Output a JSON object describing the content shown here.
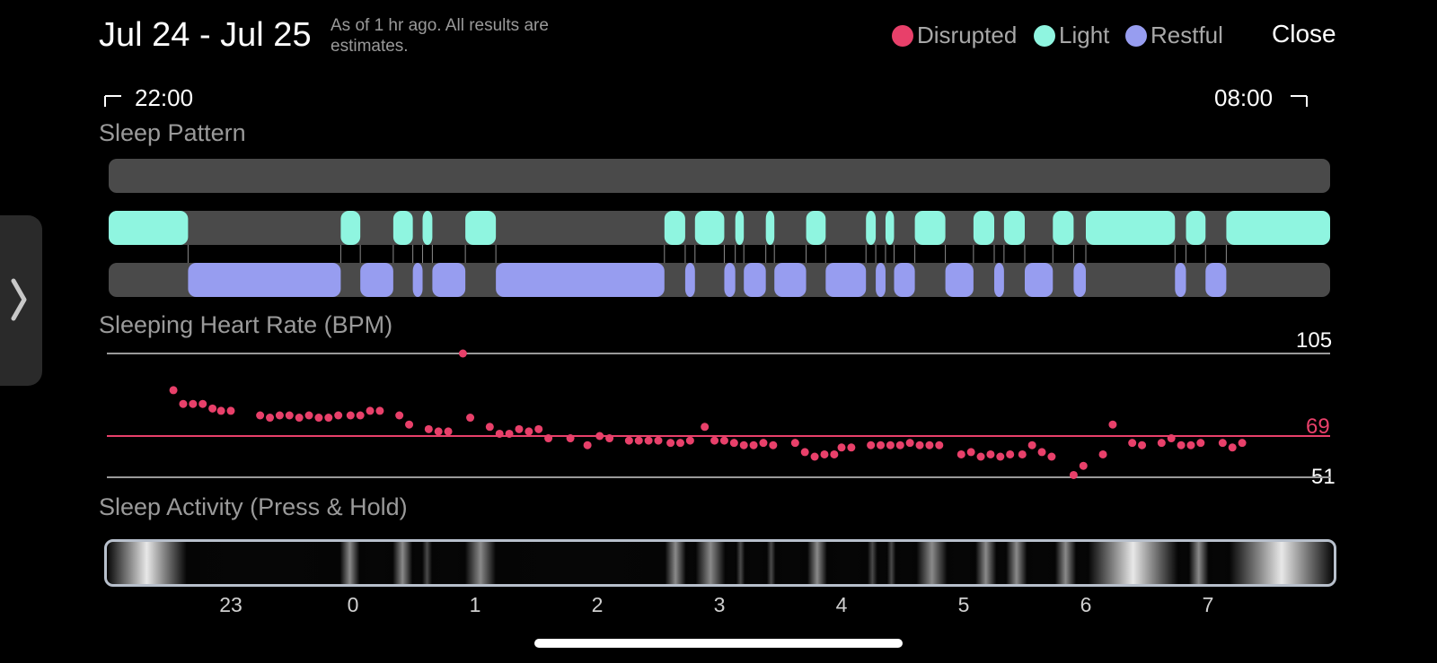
{
  "header": {
    "title": "Jul 24 - Jul 25",
    "as_of": "As of 1 hr ago. All results are estimates.",
    "close_label": "Close"
  },
  "legend": [
    {
      "label": "Disrupted",
      "color": "#e8406a"
    },
    {
      "label": "Light",
      "color": "#8ff5e0"
    },
    {
      "label": "Restful",
      "color": "#979df0"
    }
  ],
  "range": {
    "start": "22:00",
    "end": "08:00"
  },
  "sections": {
    "sleep_pattern": "Sleep Pattern",
    "heart_rate": "Sleeping Heart Rate (BPM)",
    "activity": "Sleep Activity (Press & Hold)"
  },
  "heart_rate": {
    "max_label": "105",
    "avg_label": "69",
    "min_label": "51",
    "max": 105,
    "avg": 69,
    "min": 51
  },
  "hour_labels": [
    "23",
    "0",
    "1",
    "2",
    "3",
    "4",
    "5",
    "6",
    "7"
  ],
  "icons": {
    "side_tab": "chevron-right-icon",
    "range_start": "bracket-left-icon",
    "range_end": "bracket-right-icon"
  },
  "chart_data": {
    "type": "scatter",
    "title": "Sleeping Heart Rate (BPM)",
    "xlabel": "",
    "ylabel": "",
    "x_range_hours": [
      22.0,
      8.0
    ],
    "ylim": [
      51,
      105
    ],
    "reference_lines": [
      105,
      69,
      51
    ],
    "points": [
      [
        22.53,
        89
      ],
      [
        22.61,
        83
      ],
      [
        22.69,
        83
      ],
      [
        22.77,
        83
      ],
      [
        22.85,
        81
      ],
      [
        22.92,
        80
      ],
      [
        23.0,
        80
      ],
      [
        23.24,
        78
      ],
      [
        23.32,
        77
      ],
      [
        23.4,
        78
      ],
      [
        23.48,
        78
      ],
      [
        23.56,
        77
      ],
      [
        23.64,
        78
      ],
      [
        23.72,
        77
      ],
      [
        23.8,
        77
      ],
      [
        23.88,
        78
      ],
      [
        23.98,
        78
      ],
      [
        24.06,
        78
      ],
      [
        24.14,
        80
      ],
      [
        24.22,
        80
      ],
      [
        24.38,
        78
      ],
      [
        24.46,
        74
      ],
      [
        24.62,
        72
      ],
      [
        24.7,
        71
      ],
      [
        24.78,
        71
      ],
      [
        24.9,
        105
      ],
      [
        24.96,
        77
      ],
      [
        25.12,
        73
      ],
      [
        25.2,
        70
      ],
      [
        25.28,
        70
      ],
      [
        25.36,
        72
      ],
      [
        25.44,
        71
      ],
      [
        25.52,
        72
      ],
      [
        25.6,
        68
      ],
      [
        25.78,
        68
      ],
      [
        25.92,
        65
      ],
      [
        26.02,
        69
      ],
      [
        26.1,
        68
      ],
      [
        26.26,
        67
      ],
      [
        26.34,
        67
      ],
      [
        26.42,
        67
      ],
      [
        26.5,
        67
      ],
      [
        26.6,
        66
      ],
      [
        26.68,
        66
      ],
      [
        26.76,
        67
      ],
      [
        26.88,
        73
      ],
      [
        26.96,
        67
      ],
      [
        27.04,
        67
      ],
      [
        27.12,
        66
      ],
      [
        27.2,
        65
      ],
      [
        27.28,
        65
      ],
      [
        27.36,
        66
      ],
      [
        27.44,
        65
      ],
      [
        27.62,
        66
      ],
      [
        27.7,
        62
      ],
      [
        27.78,
        60
      ],
      [
        27.86,
        61
      ],
      [
        27.94,
        61
      ],
      [
        28.0,
        64
      ],
      [
        28.08,
        64
      ],
      [
        28.24,
        65
      ],
      [
        28.32,
        65
      ],
      [
        28.4,
        65
      ],
      [
        28.48,
        65
      ],
      [
        28.56,
        66
      ],
      [
        28.64,
        65
      ],
      [
        28.72,
        65
      ],
      [
        28.8,
        65
      ],
      [
        28.98,
        61
      ],
      [
        29.06,
        62
      ],
      [
        29.14,
        60
      ],
      [
        29.22,
        61
      ],
      [
        29.3,
        60
      ],
      [
        29.38,
        61
      ],
      [
        29.48,
        61
      ],
      [
        29.56,
        65
      ],
      [
        29.64,
        62
      ],
      [
        29.72,
        60
      ],
      [
        29.9,
        52
      ],
      [
        29.98,
        56
      ],
      [
        30.14,
        61
      ],
      [
        30.22,
        74
      ],
      [
        30.38,
        66
      ],
      [
        30.46,
        65
      ],
      [
        30.62,
        66
      ],
      [
        30.7,
        68
      ],
      [
        30.78,
        65
      ],
      [
        30.86,
        65
      ],
      [
        30.94,
        66
      ],
      [
        31.12,
        66
      ],
      [
        31.2,
        64
      ],
      [
        31.28,
        66
      ]
    ],
    "sleep_pattern": {
      "disrupted": [],
      "light": [
        [
          22.0,
          22.65
        ],
        [
          23.9,
          24.06
        ],
        [
          24.33,
          24.49
        ],
        [
          24.57,
          24.65
        ],
        [
          24.92,
          25.17
        ],
        [
          26.55,
          26.72
        ],
        [
          26.8,
          27.04
        ],
        [
          27.13,
          27.2
        ],
        [
          27.38,
          27.45
        ],
        [
          27.71,
          27.87
        ],
        [
          28.2,
          28.28
        ],
        [
          28.36,
          28.43
        ],
        [
          28.6,
          28.85
        ],
        [
          29.08,
          29.25
        ],
        [
          29.33,
          29.5
        ],
        [
          29.73,
          29.9
        ],
        [
          30.0,
          30.73
        ],
        [
          30.82,
          30.98
        ],
        [
          31.15,
          32.0
        ]
      ],
      "restful": [
        [
          22.65,
          23.9
        ],
        [
          24.06,
          24.33
        ],
        [
          24.49,
          24.57
        ],
        [
          24.65,
          24.92
        ],
        [
          25.17,
          26.55
        ],
        [
          26.72,
          26.8
        ],
        [
          27.04,
          27.13
        ],
        [
          27.2,
          27.38
        ],
        [
          27.45,
          27.71
        ],
        [
          27.87,
          28.2
        ],
        [
          28.28,
          28.36
        ],
        [
          28.43,
          28.6
        ],
        [
          28.85,
          29.08
        ],
        [
          29.25,
          29.33
        ],
        [
          29.5,
          29.73
        ],
        [
          29.9,
          30.0
        ],
        [
          30.73,
          30.82
        ],
        [
          30.98,
          31.15
        ]
      ]
    }
  }
}
